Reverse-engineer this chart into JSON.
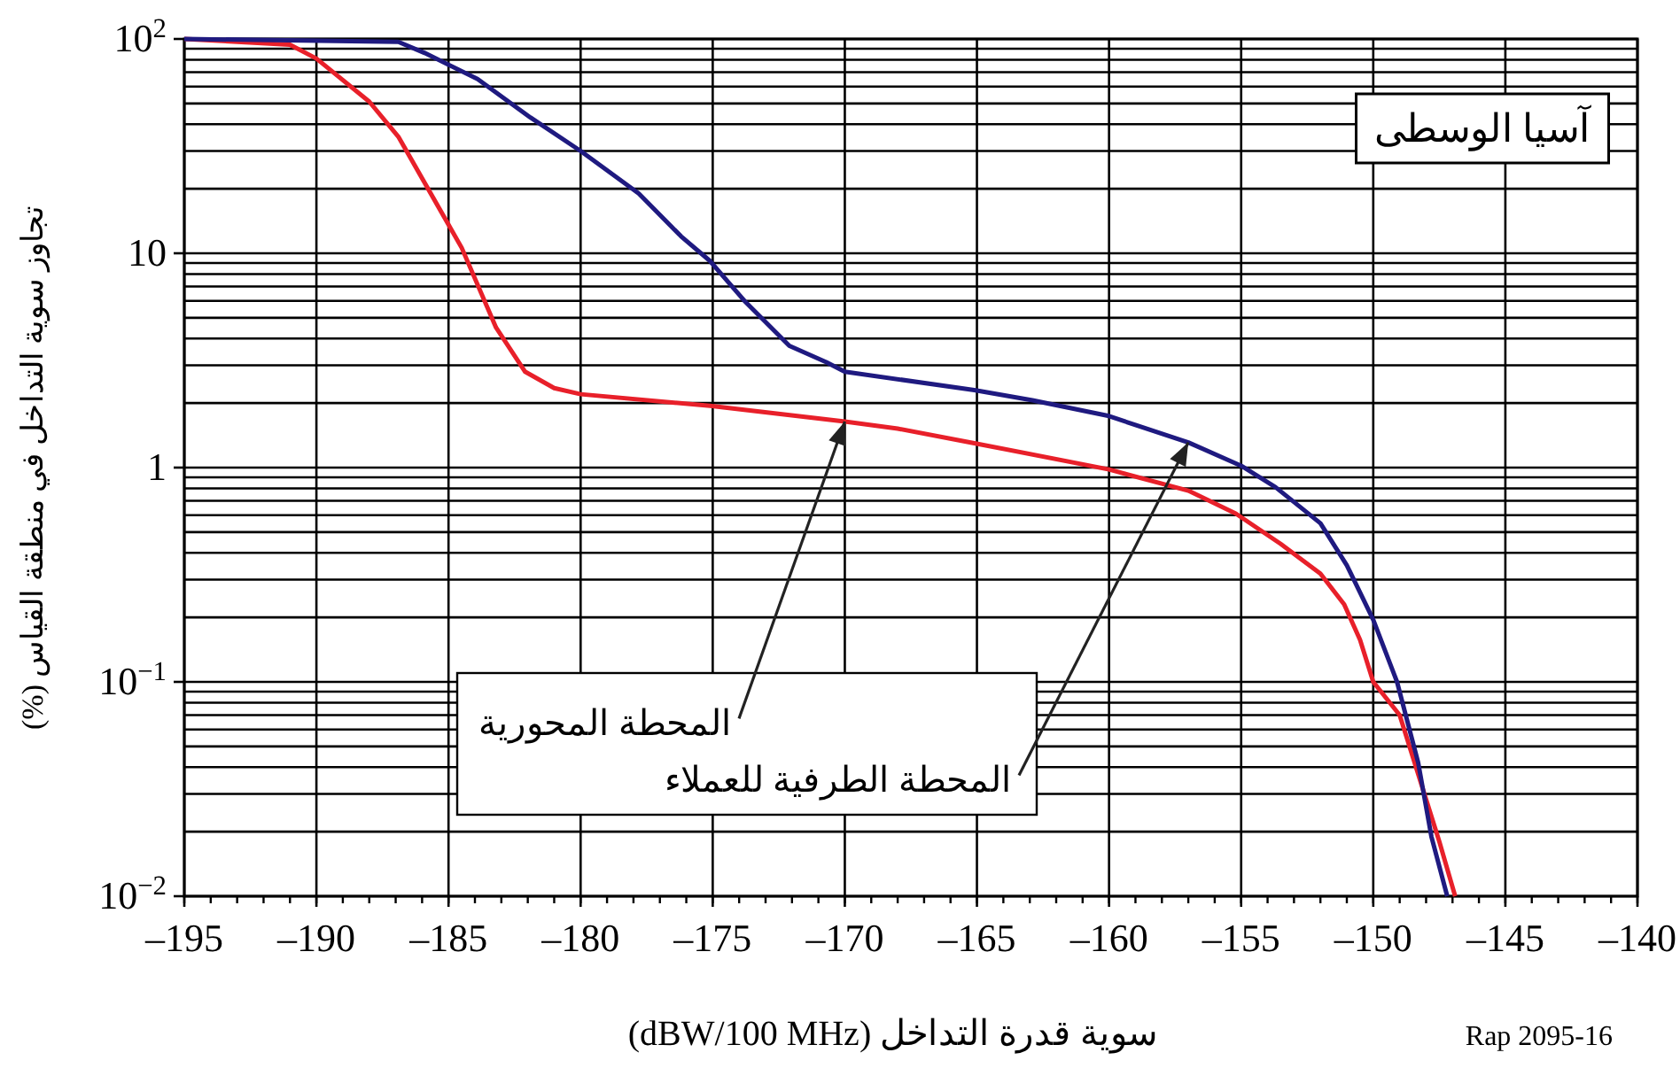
{
  "chart_data": {
    "type": "line",
    "title": "آسيا الوسطى",
    "xlabel": "سوية قدرة التداخل (dBW/100 MHz)",
    "ylabel": "تجاوز سوية التداخل في منطقة القياس (%)",
    "log": "y",
    "grid": true,
    "line_style": "solid",
    "marker": "none",
    "xlim": [
      -195,
      -140
    ],
    "ylim": [
      0.01,
      100
    ],
    "xticks": [
      {
        "value": -195,
        "label": "–195"
      },
      {
        "value": -190,
        "label": "–190"
      },
      {
        "value": -185,
        "label": "–185"
      },
      {
        "value": -180,
        "label": "–180"
      },
      {
        "value": -175,
        "label": "–175"
      },
      {
        "value": -170,
        "label": "–170"
      },
      {
        "value": -165,
        "label": "–165"
      },
      {
        "value": -160,
        "label": "–160"
      },
      {
        "value": -155,
        "label": "–155"
      },
      {
        "value": -150,
        "label": "–150"
      },
      {
        "value": -145,
        "label": "–145"
      },
      {
        "value": -140,
        "label": "–140"
      }
    ],
    "yticks": [
      {
        "value": 0.01,
        "label": "10$^{−2}$"
      },
      {
        "value": 0.1,
        "label": "10$^{−1}$"
      },
      1,
      10,
      {
        "value": 100,
        "label": "10$^{2}$"
      }
    ],
    "series": [
      {
        "color": "#e8202a",
        "x": [
          -195,
          -191,
          -190,
          -188,
          -186.9,
          -184.5,
          -183.2,
          -182.1,
          -181,
          -180,
          -175.1,
          -170,
          -168,
          -165.1,
          -160,
          -157,
          -155.2,
          -153.5,
          -152,
          -151.1,
          -150.5,
          -150,
          -149,
          -147.5,
          -146.9
        ],
        "values": [
          100,
          94,
          81,
          51,
          35,
          10.6,
          4.5,
          2.8,
          2.35,
          2.2,
          1.94,
          1.64,
          1.52,
          1.3,
          0.98,
          0.78,
          0.61,
          0.44,
          0.32,
          0.23,
          0.157,
          0.1,
          0.07,
          0.018,
          0.01
        ]
      },
      {
        "color": "#1f1a80",
        "x": [
          -195,
          -186.9,
          -185.9,
          -183.9,
          -181.9,
          -180,
          -177.8,
          -176.2,
          -175.1,
          -173.8,
          -172.1,
          -170.7,
          -170,
          -165.1,
          -162.9,
          -160,
          -159,
          -157,
          -155,
          -153.7,
          -152,
          -151,
          -150,
          -149.1,
          -148.3,
          -147.8,
          -147.2
        ],
        "values": [
          100,
          97,
          86,
          65,
          43,
          30,
          19,
          12,
          9.2,
          6,
          3.7,
          3.1,
          2.8,
          2.3,
          2.06,
          1.74,
          1.58,
          1.31,
          1.02,
          0.81,
          0.55,
          0.35,
          0.195,
          0.1,
          0.042,
          0.019,
          0.01
        ]
      }
    ],
    "annotations": [
      {
        "text": "المحطة المحورية",
        "x": -170,
        "y": 1.64
      },
      {
        "text": "المحطة الطرفية للعملاء",
        "x": -157,
        "y": 1.31
      },
      "Rap 2095-16"
    ]
  }
}
